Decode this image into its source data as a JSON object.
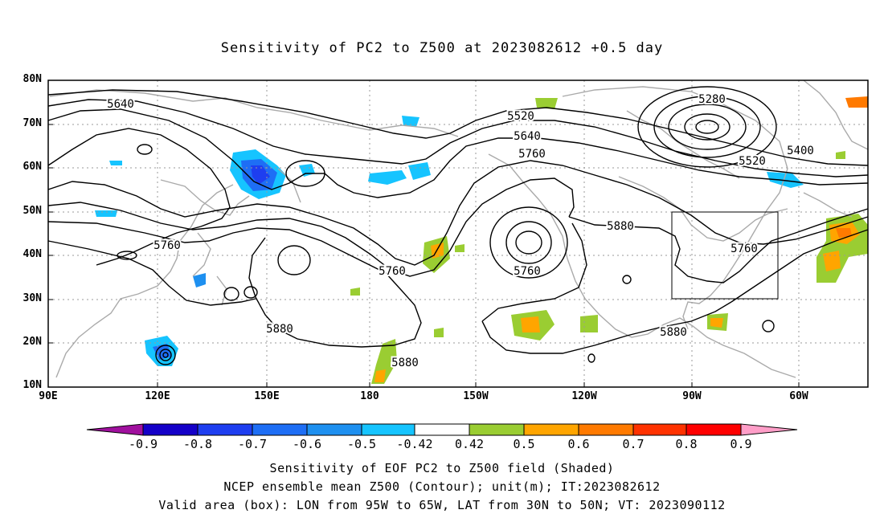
{
  "title": "Sensitivity of PC2 to Z500 at 2023082612 +0.5 day",
  "y_ticks": [
    "80N",
    "70N",
    "60N",
    "50N",
    "40N",
    "30N",
    "20N",
    "10N"
  ],
  "x_ticks": [
    "90E",
    "120E",
    "150E",
    "180",
    "150W",
    "120W",
    "90W",
    "60W"
  ],
  "contour_labels": [
    "5640",
    "5520",
    "5640",
    "5760",
    "5280",
    "5400",
    "5520",
    "5760",
    "5760",
    "5880",
    "5760",
    "5880",
    "5880",
    "5880",
    "5760"
  ],
  "colorbar": {
    "labels": [
      "-0.9",
      "-0.8",
      "-0.7",
      "-0.6",
      "-0.5",
      "-0.42",
      "0.42",
      "0.5",
      "0.6",
      "0.7",
      "0.8",
      "0.9"
    ],
    "colors": [
      "#a0109e",
      "#1400c8",
      "#1e3ef0",
      "#1e6ef5",
      "#1e90f0",
      "#16c4ff",
      "#ffffff",
      "#9acd32",
      "#ffa500",
      "#ff7a00",
      "#ff3200",
      "#ff0000",
      "#ff9ec8"
    ]
  },
  "captions": {
    "line1": "Sensitivity of EOF PC2 to Z500 field (Shaded)",
    "line2": "NCEP ensemble mean Z500 (Contour); unit(m); IT:2023082612",
    "line3": "Valid area (box): LON from 95W to 65W, LAT from 30N to 50N; VT: 2023090112"
  }
}
